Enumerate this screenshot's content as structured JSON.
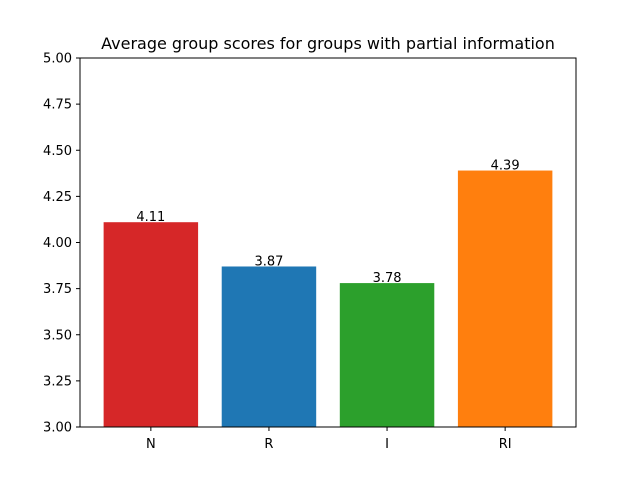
{
  "chart_data": {
    "type": "bar",
    "title": "Average group scores for groups with partial information",
    "xlabel": "",
    "ylabel": "",
    "categories": [
      "N",
      "R",
      "I",
      "RI"
    ],
    "values": [
      4.11,
      3.87,
      3.78,
      4.39
    ],
    "data_labels": [
      "4.11",
      "3.87",
      "3.78",
      "4.39"
    ],
    "colors": [
      "#d62728",
      "#1f77b4",
      "#2ca02c",
      "#ff7f0e"
    ],
    "ylim": [
      3.0,
      5.0
    ],
    "yticks": [
      3.0,
      3.25,
      3.5,
      3.75,
      4.0,
      4.25,
      4.5,
      4.75,
      5.0
    ],
    "ytick_labels": [
      "3.00",
      "3.25",
      "3.50",
      "3.75",
      "4.00",
      "4.25",
      "4.50",
      "4.75",
      "5.00"
    ],
    "grid": false,
    "legend": "none"
  }
}
